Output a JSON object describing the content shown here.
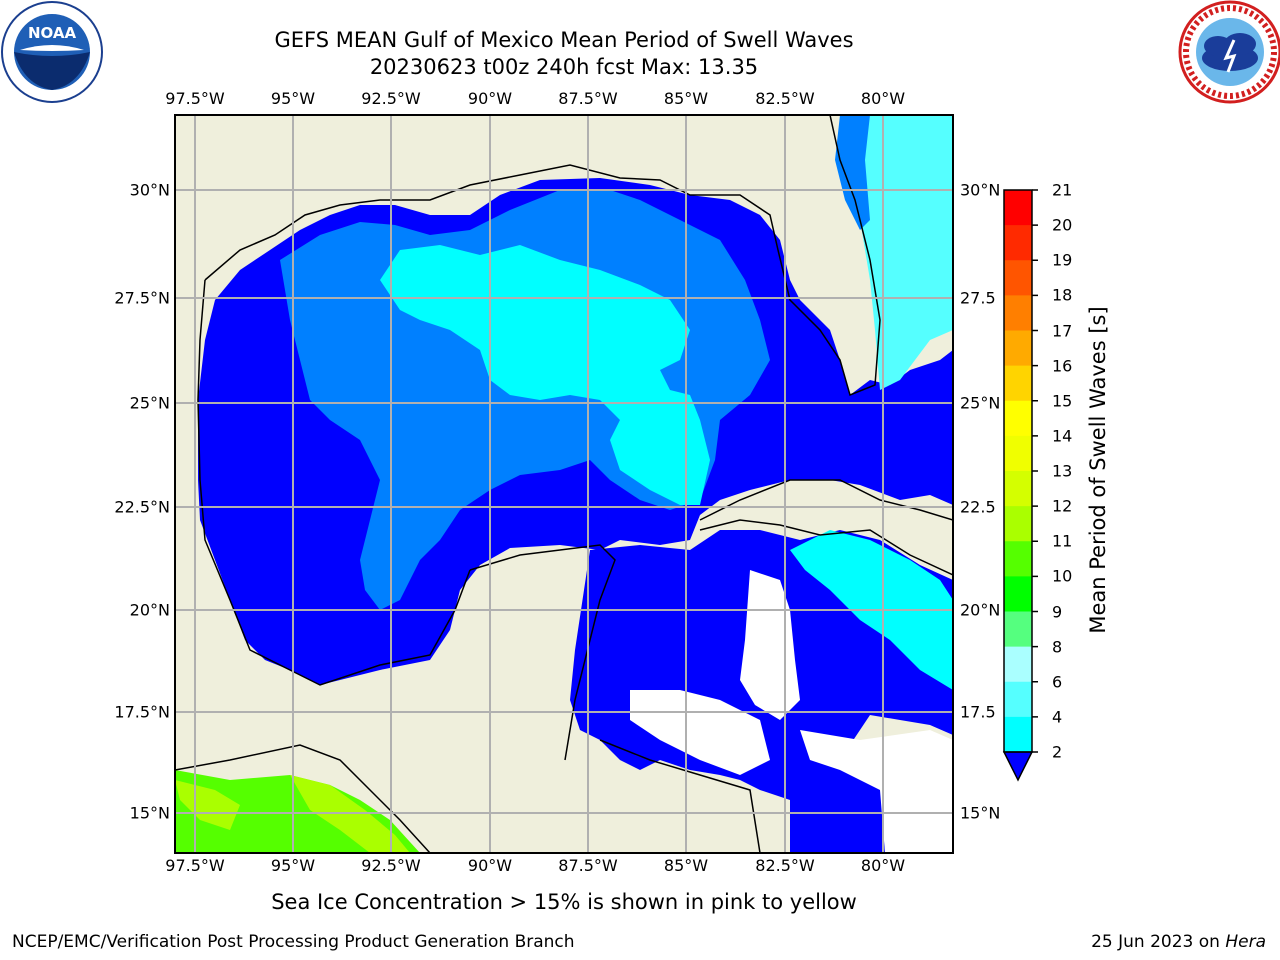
{
  "title_line1": "GEFS MEAN Gulf of Mexico Mean Period of Swell Waves",
  "title_line2": "20230623 t00z 240h fcst   Max: 13.35",
  "note": "Sea Ice Concentration > 15% is shown in pink to yellow",
  "footer_left": "NCEP/EMC/Verification Post Processing Product Generation Branch",
  "footer_right_text": "25 Jun 2023 on ",
  "footer_right_host": "Hera",
  "lon_ticks": [
    "97.5°W",
    "95°W",
    "92.5°W",
    "90°W",
    "87.5°W",
    "85°W",
    "82.5°W",
    "80°W"
  ],
  "lat_ticks_left": [
    "30°N",
    "27.5°N",
    "25°N",
    "22.5°N",
    "20°N",
    "17.5°N",
    "15°N"
  ],
  "lat_ticks_right": [
    "30°N",
    "27.5",
    "25°N",
    "22.5",
    "20°N",
    "17.5",
    "15°N"
  ],
  "colorbar": {
    "label": "Mean Period of Swell Waves [s]",
    "ticks": [
      "21",
      "20",
      "19",
      "18",
      "17",
      "16",
      "15",
      "14",
      "13",
      "12",
      "11",
      "10",
      "9",
      "8",
      "6",
      "4",
      "2"
    ],
    "colors": [
      "#ff0000",
      "#ff2a00",
      "#ff5500",
      "#ff7f00",
      "#ffaa00",
      "#ffd400",
      "#ffff00",
      "#f0ff00",
      "#d4ff00",
      "#aaff00",
      "#55ff00",
      "#00ff00",
      "#55ff7f",
      "#aaffff",
      "#55ffff",
      "#00ffff",
      "#0080ff",
      "#0000ff"
    ]
  },
  "logos": {
    "left": "noaa-logo",
    "right": "nws-logo"
  },
  "colors": {
    "land": "#efefdc",
    "deep_blue": "#0000ff",
    "mid_blue": "#0080ff",
    "cyan": "#00ffff",
    "light_cyan": "#55ffff",
    "green": "#55ff00",
    "yellow_green": "#aaff00"
  }
}
